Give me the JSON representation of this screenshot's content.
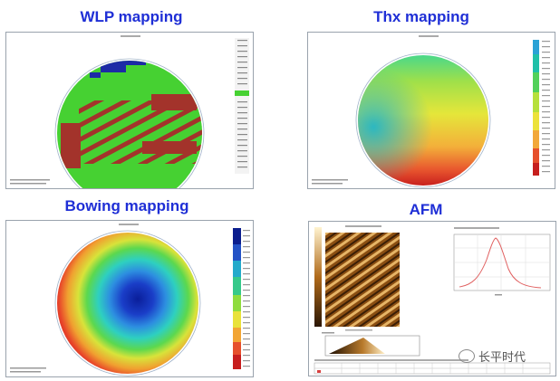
{
  "titles": {
    "wlp": "WLP mapping",
    "thx": "Thx mapping",
    "bowing": "Bowing mapping",
    "afm": "AFM"
  },
  "watermark": "长平时代"
}
